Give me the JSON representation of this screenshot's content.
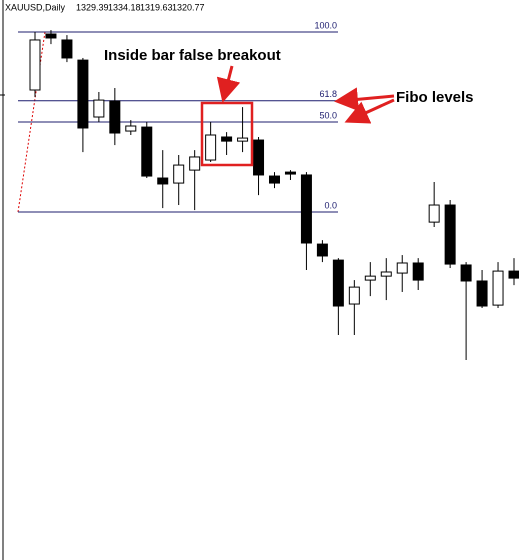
{
  "header": {
    "symbol": "XAUUSD,Daily",
    "ohlc": [
      1329.39,
      1334.18,
      1319.63,
      1320.77
    ]
  },
  "chart_data": {
    "type": "candlestick",
    "open": [
      67.8,
      98.9,
      95.6,
      84.4,
      52.8,
      61.7,
      45,
      47.2,
      18.9,
      16.1,
      23.3,
      28.9,
      41.7,
      39.4,
      40,
      20,
      22.2,
      20.6,
      -17.8,
      -26.7,
      -51.1,
      -37.8,
      -35.6,
      -33.9,
      -28.3,
      -5.6,
      3.9,
      -29.4,
      -38.3,
      -51.7,
      -32.8
    ],
    "high": [
      100,
      101.1,
      98.3,
      85.6,
      66.7,
      68.9,
      51.1,
      50,
      34.4,
      31.7,
      34.4,
      50,
      44.4,
      58.3,
      41.7,
      22.2,
      23.3,
      22.2,
      -15.6,
      -25.6,
      -37.8,
      -27.8,
      -25.6,
      -23.9,
      -25.6,
      16.7,
      6.7,
      -27.8,
      -32.2,
      -27.8,
      -25.6
    ],
    "low": [
      63.9,
      93.3,
      83.3,
      33.3,
      50,
      37.2,
      42.8,
      18.9,
      2.2,
      3.9,
      1.1,
      27.8,
      31.7,
      33.3,
      9.4,
      13.3,
      17.8,
      -32.2,
      -27.8,
      -68.3,
      -68.3,
      -46.7,
      -48.9,
      -44.4,
      -43.3,
      -8.3,
      -31.1,
      -82.2,
      -53.3,
      -53.3,
      -40.6
    ],
    "close": [
      95.6,
      96.7,
      85.6,
      46.7,
      62.2,
      43.9,
      47.8,
      20,
      15.6,
      26.1,
      30.6,
      42.8,
      39.4,
      41.1,
      20.6,
      16.1,
      21.1,
      -17.2,
      -24.4,
      -52.2,
      -41.7,
      -35.6,
      -33.3,
      -28.3,
      -37.8,
      3.9,
      -28.9,
      -38.3,
      -52.2,
      -32.8,
      -36.7
    ],
    "ylim": [
      -193.3,
      117.8
    ],
    "fib_levels": [
      {
        "value": 100,
        "label": "100.0"
      },
      {
        "value": 61.8,
        "label": "61.8"
      },
      {
        "value": 50,
        "label": "50.0"
      },
      {
        "value": 0,
        "label": "0.0"
      }
    ],
    "fib_color": "#1c1c6e",
    "up_color": "#ffffff",
    "down_color": "#000000",
    "annotations": [
      "Inside bar false breakout",
      "Fibo levels"
    ]
  }
}
